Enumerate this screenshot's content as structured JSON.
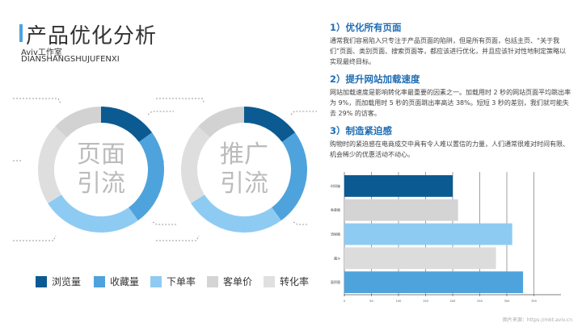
{
  "header": {
    "title": "产品优化分析",
    "subtitle": "Aviv工作室",
    "subtitle_en": "DIANSHANGSHUJUFENXI"
  },
  "sections": [
    {
      "heading": "1）优化所有页面",
      "body": "通常我们容易陷入只专注于产品页面的陷阱，但是所有页面，包括主页、“关于我们”页面、类别页面、搜索页面等，都应该进行优化，并且应该针对性地制定策略以实现最终目标。"
    },
    {
      "heading": "2）提升网站加载速度",
      "body": "网站加载速度是影响转化率最重要的因素之一。加载用时 2 秒的网站页面平均跳出率为 9%，而加载用时 5 秒的页面跳出率高达 38%。短短 3 秒的差别，我们就可能失去 29% 的访客。"
    },
    {
      "heading": "3）制造紧迫感",
      "body": "购物时的紧迫感在电商成交中具有令人难以置信的力量，人们通常很难对时间有限、机会稀少的优惠活动不动心。"
    }
  ],
  "legend": [
    {
      "label": "浏览量",
      "color": "#0b5a92"
    },
    {
      "label": "收藏量",
      "color": "#4fa3dc"
    },
    {
      "label": "下单率",
      "color": "#8ecbf3"
    },
    {
      "label": "客单价",
      "color": "#d4d4d4"
    },
    {
      "label": "转化率",
      "color": "#e0e0e0"
    }
  ],
  "footer": "图片来源：https://mkt.aviv.cn",
  "chart_data": [
    {
      "type": "pie",
      "donut": true,
      "center_label": "页面引流",
      "categories": [
        "浏览量",
        "收藏量",
        "下单率",
        "转化率",
        "客单价"
      ],
      "values": [
        15,
        25,
        26,
        21,
        13
      ],
      "colors": [
        "#0b5a92",
        "#4fa3dc",
        "#8ecbf3",
        "#dedede",
        "#d2d2d2"
      ]
    },
    {
      "type": "pie",
      "donut": true,
      "center_label": "推广引流",
      "categories": [
        "浏览量",
        "收藏量",
        "下单率",
        "转化率",
        "客单价"
      ],
      "values": [
        15,
        25,
        26,
        21,
        13
      ],
      "colors": [
        "#0b5a92",
        "#4fa3dc",
        "#8ecbf3",
        "#dedede",
        "#d2d2d2"
      ]
    },
    {
      "type": "bar",
      "orientation": "horizontal",
      "categories": [
        "时间轴",
        "鱼骨图",
        "流程图",
        "漏斗",
        "面积图"
      ],
      "values": [
        200,
        210,
        310,
        280,
        330
      ],
      "colors": [
        "#0b5a92",
        "#d4d4d4",
        "#8ecbf3",
        "#dcdcdc",
        "#4fa3dc"
      ],
      "xlim": [
        0,
        400
      ],
      "xticks": [
        0,
        50,
        100,
        150,
        200,
        250,
        300,
        350
      ],
      "grid": true
    }
  ]
}
